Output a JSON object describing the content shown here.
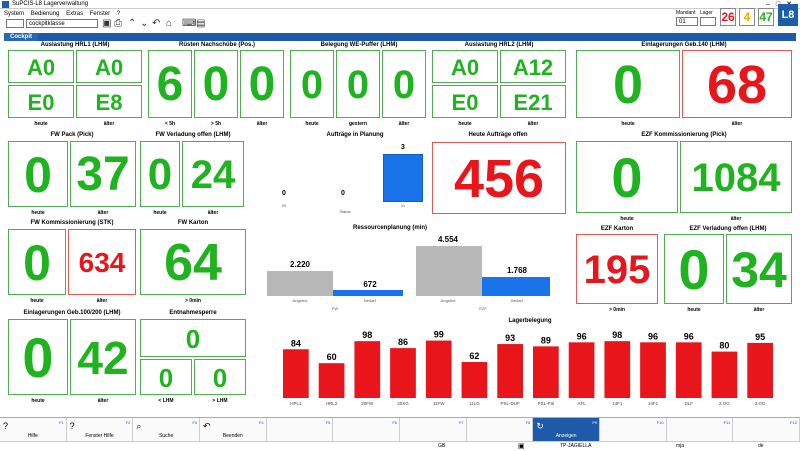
{
  "app": {
    "title": "SuPCIS-L8 Lagerverwaltung"
  },
  "menu": [
    "System",
    "Bedienung",
    "Extras",
    "Fenster",
    "?"
  ],
  "toolbar": {
    "field1": "",
    "field2": "cockpitklasse",
    "mandant_label": "Mandant",
    "lager_label": "Lager",
    "mandant_value": "01",
    "lager_value": ""
  },
  "counters": [
    {
      "value": "26",
      "color": "#e8151b"
    },
    {
      "value": "4",
      "color": "#f0a500"
    },
    {
      "value": "47",
      "color": "#1fb31f"
    }
  ],
  "logo_text": "L8",
  "tab": "Cockpit",
  "panels": {
    "hrl1": {
      "title": "Auslastung HRL1 (LHM)",
      "tiles": [
        "A0",
        "A0",
        "E0",
        "E8"
      ],
      "labels": [
        "heute",
        "älter"
      ]
    },
    "ruesten": {
      "title": "Rüsten Nachschübe (Pos.)",
      "tiles": [
        "6",
        "0",
        "0"
      ],
      "labels": [
        "< 5h",
        "> 5h",
        "älter"
      ]
    },
    "we": {
      "title": "Belegung WE-Puffer (LHM)",
      "tiles": [
        "0",
        "0",
        "0"
      ],
      "labels": [
        "heute",
        "gestern",
        "älter"
      ]
    },
    "hrl2": {
      "title": "Auslastung HRL2 (LHM)",
      "tiles": [
        "A0",
        "A12",
        "E0",
        "E21"
      ],
      "labels": [
        "heute",
        "älter"
      ]
    },
    "geb140": {
      "title": "Einlagerungen Geb.140 (LHM)",
      "tiles": [
        "0",
        "68"
      ],
      "labels": [
        "heute",
        "älter"
      ]
    },
    "fwpack": {
      "title": "FW Pack (Pick)",
      "tiles": [
        "0",
        "37"
      ],
      "labels": [
        "heute",
        "älter"
      ]
    },
    "fwverl": {
      "title": "FW Verladung offen (LHM)",
      "tiles": [
        "0",
        "24"
      ],
      "labels": [
        "heute",
        "älter"
      ]
    },
    "auftraege": {
      "title": "Aufträge in Planung",
      "values": [
        "0",
        "0",
        "3"
      ],
      "cats": [
        "09",
        "",
        "11"
      ],
      "xlabel": "Status"
    },
    "heute": {
      "title": "Heute Aufträge offen",
      "tile": "456"
    },
    "ezfkomm": {
      "title": "EZF Kommissionierung (Pick)",
      "tiles": [
        "0",
        "1084"
      ],
      "labels": [
        "heute",
        "älter"
      ]
    },
    "fwkomm": {
      "title": "FW Kommissionierung (STK)",
      "tiles": [
        "0",
        "634"
      ],
      "labels": [
        "heute",
        "älter"
      ]
    },
    "fwkarton": {
      "title": "FW Karton",
      "tile": "64",
      "label": "> 0min"
    },
    "ressourcen": {
      "title": "Ressourcenplanung (min)",
      "groups": [
        {
          "name": "FW",
          "angebot": "2.220",
          "bedarf": "672"
        },
        {
          "name": "EZF",
          "angebot": "4.554",
          "bedarf": "1.768"
        }
      ],
      "angebot_label": "Angebot",
      "bedarf_label": "Bedarf"
    },
    "ezfkarton": {
      "title": "EZF Karton",
      "tile": "195",
      "label": "> 0min"
    },
    "ezfverl": {
      "title": "EZF Verladung offen (LHM)",
      "tiles": [
        "0",
        "34"
      ],
      "labels": [
        "heute",
        "älter"
      ]
    },
    "geb100": {
      "title": "Einlagerungen Geb.100/200 (LHM)",
      "tiles": [
        "0",
        "42"
      ],
      "labels": [
        "heute",
        "älter"
      ]
    },
    "entnahme": {
      "title": "Entnahmesperre",
      "tiles": [
        "0",
        "0",
        "0"
      ],
      "labels": [
        "< LHM",
        "> LHM"
      ]
    }
  },
  "chart_data": {
    "type": "bar",
    "title": "Lagerbelegung",
    "categories": [
      "HPL1",
      "HRL2",
      "20FW",
      "20SG",
      "11FW",
      "11LG",
      "PSL-DUF",
      "PSL-Pal",
      "AFL",
      "14F1",
      "14F1",
      "DLF",
      "2.OG",
      "3.OG"
    ],
    "values": [
      84,
      60,
      98,
      86,
      99,
      62,
      93,
      89,
      96,
      98,
      96,
      96,
      80,
      95
    ],
    "color": "#e8151b",
    "ylim": [
      0,
      100
    ]
  },
  "fkeys": [
    {
      "label": "Hilfe",
      "fn": "F1",
      "icon": "?"
    },
    {
      "label": "Fenster Hilfe",
      "fn": "F2",
      "icon": "?"
    },
    {
      "label": "Suche",
      "fn": "F3",
      "icon": "⌕"
    },
    {
      "label": "Beenden",
      "fn": "F4",
      "icon": "↶"
    },
    {
      "label": "",
      "fn": "F5",
      "icon": ""
    },
    {
      "label": "",
      "fn": "F6",
      "icon": ""
    },
    {
      "label": "",
      "fn": "F7",
      "icon": ""
    },
    {
      "label": "",
      "fn": "F8",
      "icon": ""
    },
    {
      "label": "Anzeigen",
      "fn": "F9",
      "icon": "↻"
    },
    {
      "label": "",
      "fn": "F10",
      "icon": ""
    },
    {
      "label": "",
      "fn": "F11",
      "icon": ""
    },
    {
      "label": "",
      "fn": "F12",
      "icon": ""
    }
  ],
  "status": {
    "s1": "GB",
    "s2": "TP-JAGIELLA",
    "s3": "mja",
    "s4": "de"
  }
}
